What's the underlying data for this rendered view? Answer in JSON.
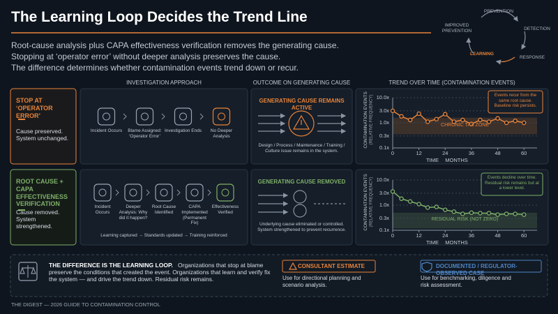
{
  "header": {
    "title": "The Learning Loop Decides the Trend Line",
    "subtitle": [
      "Root-cause analysis plus CAPA effectiveness verification removes the generating cause.",
      "Stopping at ‘operator error’ without deeper analysis preserves the cause.",
      "The difference determines whether contamination events trend down or recur."
    ]
  },
  "loop": {
    "steps": [
      "PREVENTION",
      "DETECTION",
      "RESPONSE",
      "LEARNING",
      "IMPROVED PREVENTION"
    ]
  },
  "columns": [
    "INVESTIGATION APPROACH",
    "OUTCOME ON GENERATING CAUSE",
    "TREND OVER TIME (CONTAMINATION EVENTS)"
  ],
  "rows": [
    {
      "label": "STOP AT ‘OPERATOR ERROR’",
      "summary": "Cause preserved. System unchanged.",
      "steps": [
        "Incident Occurs",
        "Blame Assigned: ‘Operator Error’",
        "Investigation Ends",
        "No Deeper Analysis"
      ],
      "outcome_title": "GENERATING CAUSE REMAINS ACTIVE",
      "outcome_text": "Design / Process / Maintenance / Training / Culture issue remains in the system."
    },
    {
      "label": "ROOT CAUSE + CAPA EFFECTIVENESS VERIFICATION",
      "summary": "Cause removed. System strengthened.",
      "steps": [
        "Incident Occurs",
        "Deeper Analysis: Why did it happen?",
        "Root Cause Identified",
        "CAPA Implemented (Permanent Fix)",
        "Effectiveness Verified"
      ],
      "steps_caption": "Learning captured → Standards updated → Training reinforced",
      "outcome_title": "GENERATING CAUSE REMOVED",
      "outcome_text": "Underlying cause eliminated or controlled. System strengthened to prevent recurrence."
    }
  ],
  "chart_data": [
    {
      "type": "line",
      "ylabel": "CONTAMINATION EVENTS",
      "ylabel_note": "(RELATIVE FREQUENCY)",
      "xlabel": "TIME",
      "xunit": "MONTHS",
      "annotation": "Events recur from the same root cause. Baseline risk persists.",
      "zone": {
        "label": "CHRONIC TAX ZONE",
        "range": [
          0.35,
          1.6
        ]
      },
      "y_log": true,
      "grid": true,
      "color": "#e8843a",
      "x": [
        0,
        4,
        8,
        12,
        16,
        20,
        24,
        28,
        32,
        36,
        40,
        44,
        48,
        52,
        56,
        60
      ],
      "values": [
        3.0,
        1.8,
        1.3,
        2.3,
        1.1,
        1.4,
        2.2,
        1.1,
        1.3,
        0.9,
        1.3,
        1.1,
        1.5,
        1.0,
        1.2,
        1.0
      ],
      "xlim": [
        0,
        66
      ],
      "xticks": [
        0,
        12,
        24,
        36,
        48,
        60
      ],
      "ylim": [
        0.1,
        10
      ],
      "yticks": [
        {
          "value": 10,
          "label": "10.0x"
        },
        {
          "value": 3,
          "label": "3.0x"
        },
        {
          "value": 1,
          "label": "1.0x"
        },
        {
          "value": 0.3,
          "label": "0.3x"
        },
        {
          "value": 0.1,
          "label": "0.1x"
        }
      ]
    },
    {
      "type": "line",
      "ylabel": "CONTAMINATION EVENTS",
      "ylabel_note": "(RELATIVE FREQUENCY)",
      "xlabel": "TIME",
      "xunit": "MONTHS",
      "annotation": "Events decline over time. Residual risk remains but at a lower level.",
      "zone": {
        "label": "RESIDUAL RISK (NOT ZERO)",
        "range": [
          0.12,
          0.5
        ]
      },
      "y_log": true,
      "grid": true,
      "color": "#7fb069",
      "x": [
        0,
        4,
        8,
        12,
        16,
        20,
        24,
        28,
        32,
        36,
        40,
        44,
        48,
        52,
        56,
        60
      ],
      "values": [
        3.5,
        1.8,
        1.4,
        1.1,
        0.8,
        0.85,
        0.65,
        0.55,
        0.45,
        0.5,
        0.48,
        0.48,
        0.42,
        0.45,
        0.45,
        0.42
      ],
      "xlim": [
        0,
        66
      ],
      "xticks": [
        0,
        12,
        24,
        36,
        48,
        60
      ],
      "ylim": [
        0.1,
        10
      ],
      "yticks": [
        {
          "value": 10,
          "label": "10.0x"
        },
        {
          "value": 3,
          "label": "3.0x"
        },
        {
          "value": 1,
          "label": "1.0x"
        },
        {
          "value": 0.3,
          "label": "0.3x"
        },
        {
          "value": 0.1,
          "label": "0.1x"
        }
      ]
    }
  ],
  "summary_box": {
    "heading": "THE DIFFERENCE IS THE LEARNING LOOP.",
    "text": "Organizations that stop at blame preserve the conditions that created the event. Organizations that learn and verify fix the system — and drive the trend down. Residual risk remains.",
    "badges": [
      {
        "title": "CONSULTANT ESTIMATE",
        "text": "Use for directional planning and scenario analysis."
      },
      {
        "title": "DOCUMENTED / REGULATOR-OBSERVED CASE",
        "text": "Use for benchmarking, diligence and risk assessment."
      }
    ]
  },
  "footer": "THE DIGEST — 2026 GUIDE TO CONTAMINATION CONTROL"
}
